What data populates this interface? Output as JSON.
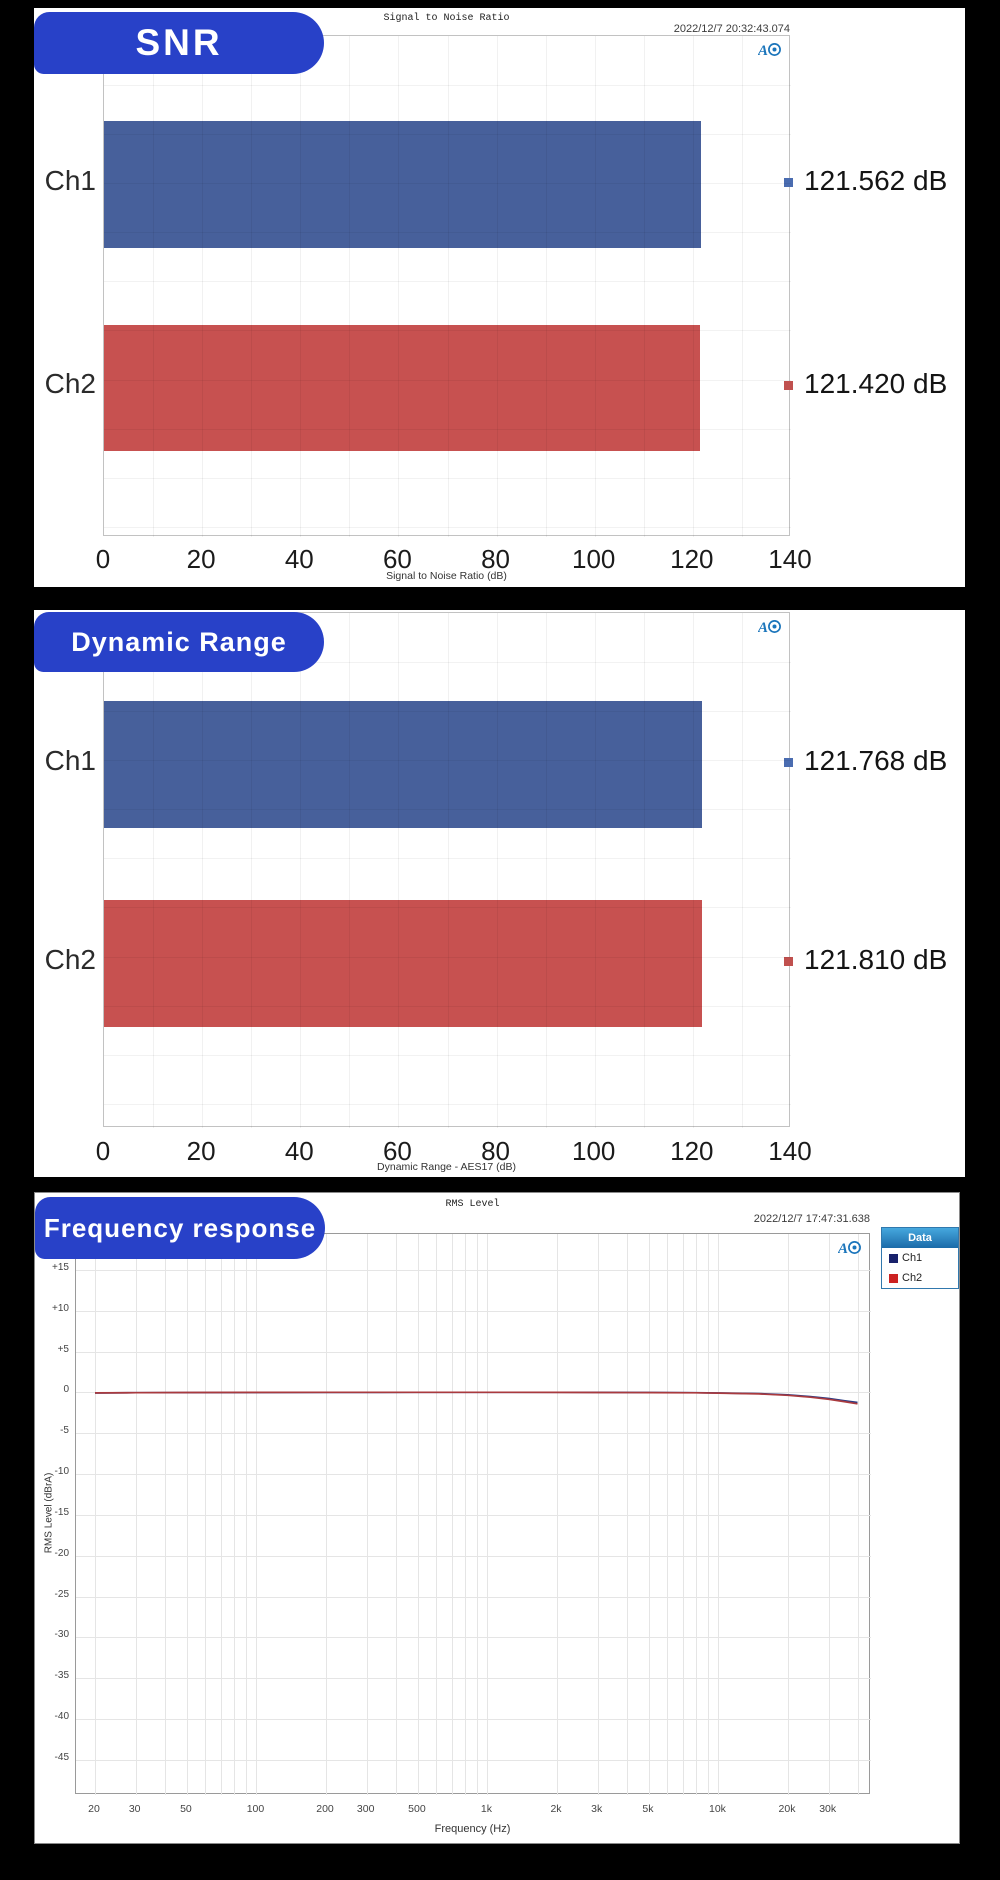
{
  "chart_data": [
    {
      "id": "snr",
      "type": "bar",
      "badge": "SNR",
      "title": "Signal to Noise Ratio",
      "timestamp": "2022/12/7 20:32:43.074",
      "xlabel": "Signal to Noise Ratio (dB)",
      "xlim": [
        0,
        140
      ],
      "xticks": [
        "0",
        "20",
        "40",
        "60",
        "80",
        "100",
        "120",
        "140"
      ],
      "categories": [
        "Ch1",
        "Ch2"
      ],
      "values": [
        121.562,
        121.42
      ],
      "value_labels": [
        "121.562 dB",
        "121.420 dB"
      ],
      "bar_colors": [
        "#47609b",
        "#c75150"
      ],
      "marker_colors": [
        "#4a6cb0",
        "#c0504e"
      ]
    },
    {
      "id": "dynamic_range",
      "type": "bar",
      "badge": "Dynamic Range",
      "xlabel": "Dynamic Range - AES17 (dB)",
      "xlim": [
        0,
        140
      ],
      "xticks": [
        "0",
        "20",
        "40",
        "60",
        "80",
        "100",
        "120",
        "140"
      ],
      "categories": [
        "Ch1",
        "Ch2"
      ],
      "values": [
        121.768,
        121.81
      ],
      "value_labels": [
        "121.768 dB",
        "121.810 dB"
      ],
      "bar_colors": [
        "#47609b",
        "#c75150"
      ],
      "marker_colors": [
        "#4a6cb0",
        "#c0504e"
      ]
    },
    {
      "id": "frequency_response",
      "type": "line",
      "badge": "Frequency response",
      "title": "RMS Level",
      "timestamp": "2022/12/7 17:47:31.638",
      "xlabel": "Frequency (Hz)",
      "ylabel": "RMS Level (dBrA)",
      "x_scale": "log",
      "xlim": [
        20,
        45000
      ],
      "ylim": [
        -49,
        19
      ],
      "grid": true,
      "legend_position": "top-right",
      "legend": {
        "header": "Data",
        "items": [
          {
            "label": "Ch1",
            "color": "#18216b"
          },
          {
            "label": "Ch2",
            "color": "#cc2222"
          }
        ]
      },
      "yticks": [
        {
          "value": 15,
          "label": "+15"
        },
        {
          "value": 10,
          "label": "+10"
        },
        {
          "value": 5,
          "label": "+5"
        },
        {
          "value": 0,
          "label": "0"
        },
        {
          "value": -5,
          "label": "-5"
        },
        {
          "value": -10,
          "label": "-10"
        },
        {
          "value": -15,
          "label": "-15"
        },
        {
          "value": -20,
          "label": "-20"
        },
        {
          "value": -25,
          "label": "-25"
        },
        {
          "value": -30,
          "label": "-30"
        },
        {
          "value": -35,
          "label": "-35"
        },
        {
          "value": -40,
          "label": "-40"
        },
        {
          "value": -45,
          "label": "-45"
        }
      ],
      "xticks": [
        {
          "value": 20,
          "label": "20"
        },
        {
          "value": 30,
          "label": "30"
        },
        {
          "value": 50,
          "label": "50"
        },
        {
          "value": 100,
          "label": "100"
        },
        {
          "value": 200,
          "label": "200"
        },
        {
          "value": 300,
          "label": "300"
        },
        {
          "value": 500,
          "label": "500"
        },
        {
          "value": 1000,
          "label": "1k"
        },
        {
          "value": 2000,
          "label": "2k"
        },
        {
          "value": 3000,
          "label": "3k"
        },
        {
          "value": 5000,
          "label": "5k"
        },
        {
          "value": 10000,
          "label": "10k"
        },
        {
          "value": 20000,
          "label": "20k"
        },
        {
          "value": 30000,
          "label": "30k"
        }
      ],
      "series": [
        {
          "name": "Ch1",
          "color": "#283b85",
          "points": [
            [
              20,
              -0.06
            ],
            [
              30,
              -0.02
            ],
            [
              50,
              -0.01
            ],
            [
              100,
              0
            ],
            [
              200,
              0.01
            ],
            [
              500,
              0.02
            ],
            [
              1000,
              0.02
            ],
            [
              2000,
              0.02
            ],
            [
              3000,
              0.01
            ],
            [
              5000,
              0
            ],
            [
              8000,
              -0.03
            ],
            [
              10000,
              -0.06
            ],
            [
              15000,
              -0.14
            ],
            [
              20000,
              -0.3
            ],
            [
              25000,
              -0.5
            ],
            [
              30000,
              -0.74
            ],
            [
              35000,
              -1.0
            ],
            [
              40000,
              -1.22
            ]
          ]
        },
        {
          "name": "Ch2",
          "color": "#aa3a3e",
          "points": [
            [
              20,
              -0.05
            ],
            [
              30,
              -0.02
            ],
            [
              50,
              0
            ],
            [
              100,
              0.01
            ],
            [
              200,
              0.02
            ],
            [
              500,
              0.02
            ],
            [
              1000,
              0.02
            ],
            [
              2000,
              0.01
            ],
            [
              3000,
              0
            ],
            [
              5000,
              -0.01
            ],
            [
              8000,
              -0.04
            ],
            [
              10000,
              -0.07
            ],
            [
              15000,
              -0.17
            ],
            [
              20000,
              -0.35
            ],
            [
              25000,
              -0.58
            ],
            [
              30000,
              -0.84
            ],
            [
              35000,
              -1.12
            ],
            [
              40000,
              -1.38
            ]
          ]
        }
      ]
    }
  ],
  "ap_logo_label": "AP"
}
